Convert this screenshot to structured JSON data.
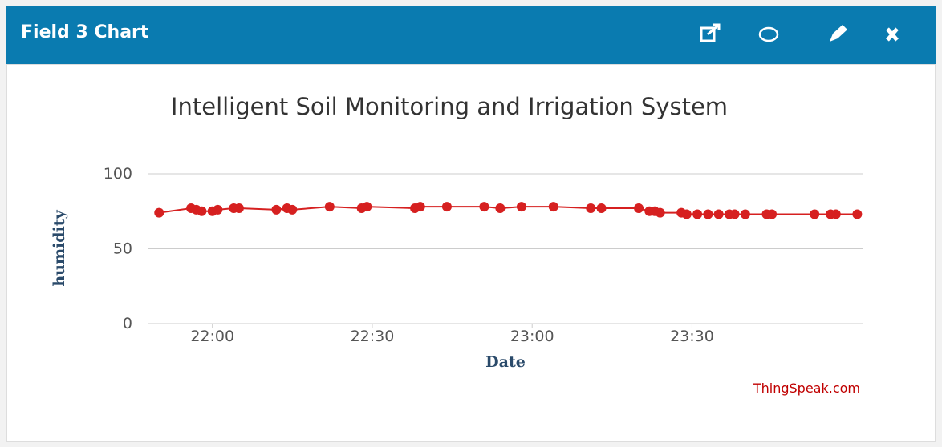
{
  "header": {
    "title": "Field 3 Chart"
  },
  "chart_data": {
    "type": "line",
    "title": "Intelligent Soil Monitoring and Irrigation System",
    "xlabel": "Date",
    "ylabel": "humidity",
    "credit": "ThingSpeak.com",
    "x": [
      "21:50",
      "21:56",
      "21:57",
      "21:58",
      "22:00",
      "22:01",
      "22:04",
      "22:05",
      "22:12",
      "22:14",
      "22:15",
      "22:22",
      "22:28",
      "22:29",
      "22:38",
      "22:39",
      "22:44",
      "22:51",
      "22:54",
      "22:58",
      "23:04",
      "23:11",
      "23:13",
      "23:20",
      "23:22",
      "23:23",
      "23:24",
      "23:28",
      "23:29",
      "23:31",
      "23:33",
      "23:35",
      "23:37",
      "23:38",
      "23:40",
      "23:44",
      "23:45",
      "23:53",
      "23:56",
      "23:57",
      "00:01"
    ],
    "series": [
      {
        "name": "humidity",
        "color": "#d62020",
        "values": [
          74,
          77,
          76,
          75,
          75,
          76,
          77,
          77,
          76,
          77,
          76,
          78,
          77,
          78,
          77,
          78,
          78,
          78,
          77,
          78,
          78,
          77,
          77,
          77,
          75,
          75,
          74,
          74,
          73,
          73,
          73,
          73,
          73,
          73,
          73,
          73,
          73,
          73,
          73,
          73,
          73
        ]
      }
    ],
    "xlim": [
      "21:48",
      "00:02"
    ],
    "xticks": [
      "22:00",
      "22:30",
      "23:00",
      "23:30"
    ],
    "ylim": [
      0,
      100
    ],
    "yticks": [
      0,
      50,
      100
    ],
    "grid": true
  }
}
